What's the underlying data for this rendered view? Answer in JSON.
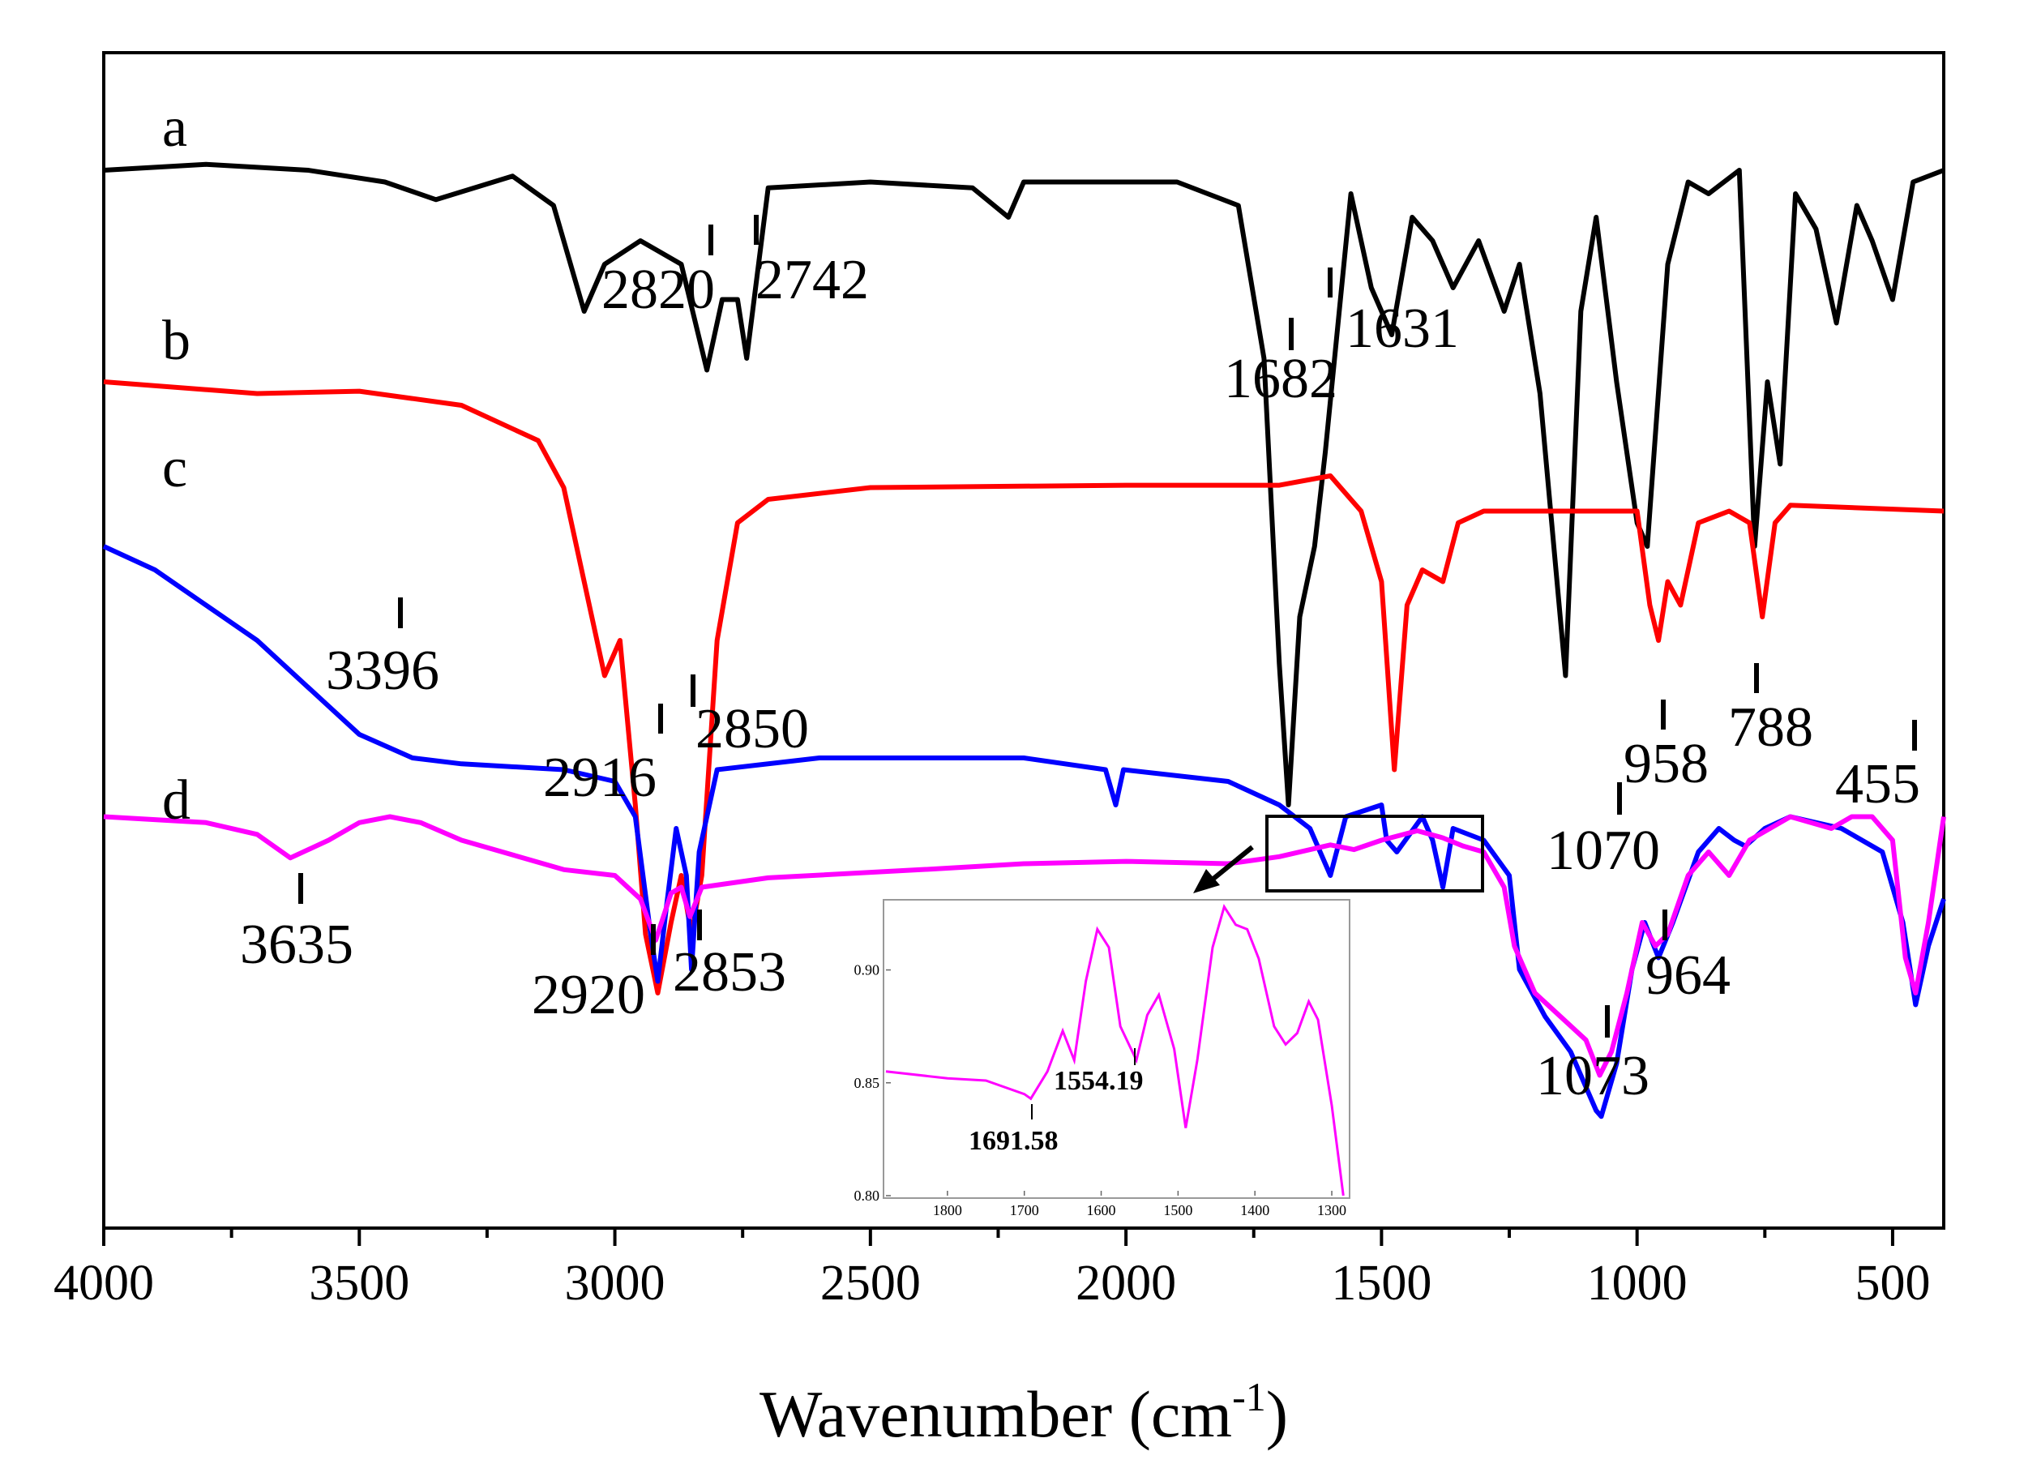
{
  "chart_data": {
    "type": "line",
    "title": "",
    "xlabel": "Wavenumber (cm",
    "xlabel_sup": "-1",
    "xlabel_close": ")",
    "ylabel": "",
    "xlim": [
      4000,
      400
    ],
    "x_reversed": true,
    "x_ticks": [
      4000,
      3500,
      3000,
      2500,
      2000,
      1500,
      1000,
      500
    ],
    "x_tick_labels": [
      "4000",
      "3500",
      "3000",
      "2500",
      "2000",
      "1500",
      "1000",
      "500"
    ],
    "y_ticks_shown": false,
    "series": [
      {
        "name": "a",
        "color": "#000000",
        "offset": 0.9,
        "points": [
          [
            4000,
            0.9
          ],
          [
            3800,
            0.905
          ],
          [
            3600,
            0.9
          ],
          [
            3450,
            0.89
          ],
          [
            3350,
            0.875
          ],
          [
            3200,
            0.895
          ],
          [
            3120,
            0.87
          ],
          [
            3060,
            0.78
          ],
          [
            3020,
            0.82
          ],
          [
            2950,
            0.84
          ],
          [
            2870,
            0.82
          ],
          [
            2820,
            0.73
          ],
          [
            2790,
            0.79
          ],
          [
            2760,
            0.79
          ],
          [
            2742,
            0.74
          ],
          [
            2700,
            0.885
          ],
          [
            2500,
            0.89
          ],
          [
            2300,
            0.885
          ],
          [
            2230,
            0.86
          ],
          [
            2200,
            0.89
          ],
          [
            1900,
            0.89
          ],
          [
            1780,
            0.87
          ],
          [
            1730,
            0.74
          ],
          [
            1700,
            0.48
          ],
          [
            1682,
            0.36
          ],
          [
            1660,
            0.52
          ],
          [
            1631,
            0.58
          ],
          [
            1610,
            0.66
          ],
          [
            1560,
            0.88
          ],
          [
            1520,
            0.8
          ],
          [
            1480,
            0.76
          ],
          [
            1440,
            0.86
          ],
          [
            1400,
            0.84
          ],
          [
            1360,
            0.8
          ],
          [
            1310,
            0.84
          ],
          [
            1260,
            0.78
          ],
          [
            1230,
            0.82
          ],
          [
            1190,
            0.71
          ],
          [
            1140,
            0.47
          ],
          [
            1110,
            0.78
          ],
          [
            1080,
            0.86
          ],
          [
            1040,
            0.72
          ],
          [
            1000,
            0.6
          ],
          [
            980,
            0.58
          ],
          [
            940,
            0.82
          ],
          [
            900,
            0.89
          ],
          [
            860,
            0.88
          ],
          [
            800,
            0.9
          ],
          [
            770,
            0.58
          ],
          [
            745,
            0.72
          ],
          [
            720,
            0.65
          ],
          [
            690,
            0.88
          ],
          [
            650,
            0.85
          ],
          [
            610,
            0.77
          ],
          [
            570,
            0.87
          ],
          [
            540,
            0.84
          ],
          [
            500,
            0.79
          ],
          [
            460,
            0.89
          ],
          [
            400,
            0.9
          ]
        ],
        "labels": [
          {
            "text": "2820",
            "x": 2820
          },
          {
            "text": "2742",
            "x": 2742
          },
          {
            "text": "1682",
            "x": 1682
          },
          {
            "text": "1631",
            "x": 1631
          }
        ]
      },
      {
        "name": "b",
        "color": "#ff0000",
        "offset": 0.72,
        "points": [
          [
            4000,
            0.72
          ],
          [
            3700,
            0.71
          ],
          [
            3500,
            0.712
          ],
          [
            3300,
            0.7
          ],
          [
            3150,
            0.67
          ],
          [
            3100,
            0.63
          ],
          [
            3060,
            0.55
          ],
          [
            3020,
            0.47
          ],
          [
            2990,
            0.5
          ],
          [
            2960,
            0.36
          ],
          [
            2940,
            0.25
          ],
          [
            2916,
            0.2
          ],
          [
            2890,
            0.26
          ],
          [
            2870,
            0.3
          ],
          [
            2850,
            0.25
          ],
          [
            2830,
            0.3
          ],
          [
            2800,
            0.5
          ],
          [
            2760,
            0.6
          ],
          [
            2700,
            0.62
          ],
          [
            2500,
            0.63
          ],
          [
            2000,
            0.632
          ],
          [
            1700,
            0.632
          ],
          [
            1600,
            0.64
          ],
          [
            1540,
            0.61
          ],
          [
            1500,
            0.55
          ],
          [
            1475,
            0.39
          ],
          [
            1450,
            0.53
          ],
          [
            1420,
            0.56
          ],
          [
            1380,
            0.55
          ],
          [
            1350,
            0.6
          ],
          [
            1300,
            0.61
          ],
          [
            1000,
            0.61
          ],
          [
            975,
            0.53
          ],
          [
            958,
            0.5
          ],
          [
            940,
            0.55
          ],
          [
            915,
            0.53
          ],
          [
            880,
            0.6
          ],
          [
            820,
            0.61
          ],
          [
            780,
            0.6
          ],
          [
            755,
            0.52
          ],
          [
            730,
            0.6
          ],
          [
            700,
            0.615
          ],
          [
            400,
            0.61
          ]
        ],
        "labels": []
      },
      {
        "name": "c",
        "color": "#0000ff",
        "offset": 0.56,
        "points": [
          [
            4000,
            0.58
          ],
          [
            3900,
            0.56
          ],
          [
            3800,
            0.53
          ],
          [
            3700,
            0.5
          ],
          [
            3600,
            0.46
          ],
          [
            3500,
            0.42
          ],
          [
            3396,
            0.4
          ],
          [
            3300,
            0.395
          ],
          [
            3100,
            0.39
          ],
          [
            3000,
            0.38
          ],
          [
            2960,
            0.35
          ],
          [
            2930,
            0.25
          ],
          [
            2916,
            0.21
          ],
          [
            2900,
            0.27
          ],
          [
            2880,
            0.34
          ],
          [
            2860,
            0.3
          ],
          [
            2850,
            0.22
          ],
          [
            2835,
            0.32
          ],
          [
            2800,
            0.39
          ],
          [
            2600,
            0.4
          ],
          [
            2200,
            0.4
          ],
          [
            2040,
            0.39
          ],
          [
            2020,
            0.36
          ],
          [
            2005,
            0.39
          ],
          [
            1800,
            0.38
          ],
          [
            1700,
            0.36
          ],
          [
            1640,
            0.34
          ],
          [
            1600,
            0.3
          ],
          [
            1570,
            0.35
          ],
          [
            1500,
            0.36
          ],
          [
            1490,
            0.33
          ],
          [
            1470,
            0.32
          ],
          [
            1420,
            0.35
          ],
          [
            1400,
            0.33
          ],
          [
            1380,
            0.29
          ],
          [
            1360,
            0.34
          ],
          [
            1300,
            0.33
          ],
          [
            1250,
            0.3
          ],
          [
            1230,
            0.22
          ],
          [
            1180,
            0.18
          ],
          [
            1130,
            0.15
          ],
          [
            1080,
            0.1
          ],
          [
            1070,
            0.095
          ],
          [
            1040,
            0.14
          ],
          [
            1010,
            0.22
          ],
          [
            985,
            0.26
          ],
          [
            958,
            0.23
          ],
          [
            930,
            0.26
          ],
          [
            880,
            0.32
          ],
          [
            840,
            0.34
          ],
          [
            810,
            0.33
          ],
          [
            788,
            0.325
          ],
          [
            750,
            0.34
          ],
          [
            700,
            0.35
          ],
          [
            600,
            0.34
          ],
          [
            520,
            0.32
          ],
          [
            480,
            0.26
          ],
          [
            455,
            0.19
          ],
          [
            430,
            0.24
          ],
          [
            400,
            0.28
          ]
        ],
        "labels": [
          {
            "text": "3396",
            "x": 3396
          },
          {
            "text": "2916",
            "x": 2916
          },
          {
            "text": "2850",
            "x": 2850
          },
          {
            "text": "1070",
            "x": 1070
          },
          {
            "text": "958",
            "x": 958
          },
          {
            "text": "788",
            "x": 788
          },
          {
            "text": "455",
            "x": 455
          }
        ]
      },
      {
        "name": "d",
        "color": "#ff00ff",
        "offset": 0.35,
        "points": [
          [
            4000,
            0.35
          ],
          [
            3800,
            0.345
          ],
          [
            3700,
            0.335
          ],
          [
            3635,
            0.315
          ],
          [
            3560,
            0.33
          ],
          [
            3500,
            0.345
          ],
          [
            3440,
            0.35
          ],
          [
            3380,
            0.345
          ],
          [
            3300,
            0.33
          ],
          [
            3100,
            0.305
          ],
          [
            3000,
            0.3
          ],
          [
            2950,
            0.28
          ],
          [
            2920,
            0.245
          ],
          [
            2890,
            0.285
          ],
          [
            2870,
            0.29
          ],
          [
            2853,
            0.265
          ],
          [
            2830,
            0.29
          ],
          [
            2700,
            0.298
          ],
          [
            2400,
            0.305
          ],
          [
            2200,
            0.31
          ],
          [
            2000,
            0.312
          ],
          [
            1800,
            0.31
          ],
          [
            1700,
            0.316
          ],
          [
            1600,
            0.326
          ],
          [
            1554,
            0.322
          ],
          [
            1500,
            0.33
          ],
          [
            1430,
            0.338
          ],
          [
            1380,
            0.332
          ],
          [
            1340,
            0.325
          ],
          [
            1300,
            0.32
          ],
          [
            1260,
            0.29
          ],
          [
            1240,
            0.24
          ],
          [
            1200,
            0.2
          ],
          [
            1150,
            0.18
          ],
          [
            1100,
            0.16
          ],
          [
            1073,
            0.13
          ],
          [
            1050,
            0.15
          ],
          [
            1020,
            0.2
          ],
          [
            990,
            0.26
          ],
          [
            964,
            0.24
          ],
          [
            940,
            0.25
          ],
          [
            900,
            0.3
          ],
          [
            860,
            0.32
          ],
          [
            820,
            0.3
          ],
          [
            780,
            0.33
          ],
          [
            700,
            0.35
          ],
          [
            620,
            0.34
          ],
          [
            580,
            0.35
          ],
          [
            540,
            0.35
          ],
          [
            500,
            0.33
          ],
          [
            475,
            0.23
          ],
          [
            455,
            0.2
          ],
          [
            430,
            0.26
          ],
          [
            400,
            0.35
          ]
        ],
        "labels": [
          {
            "text": "3635",
            "x": 3635
          },
          {
            "text": "2920",
            "x": 2920
          },
          {
            "text": "2853",
            "x": 2853
          },
          {
            "text": "1073",
            "x": 1073
          },
          {
            "text": "964",
            "x": 964
          }
        ]
      }
    ],
    "inset": {
      "type": "line",
      "series_name": "d (zoom)",
      "color": "#ff00ff",
      "xlim": [
        1880,
        1280
      ],
      "ylim": [
        0.8,
        0.93
      ],
      "x_ticks": [
        1800,
        1700,
        1600,
        1500,
        1400,
        1300
      ],
      "x_tick_labels": [
        "1800",
        "1700",
        "1600",
        "1500",
        "1400",
        "1300"
      ],
      "y_ticks": [
        0.8,
        0.85,
        0.9
      ],
      "y_tick_labels": [
        "0.80",
        "0.85",
        "0.90"
      ],
      "points": [
        [
          1880,
          0.855
        ],
        [
          1800,
          0.852
        ],
        [
          1750,
          0.851
        ],
        [
          1700,
          0.845
        ],
        [
          1691.58,
          0.843
        ],
        [
          1670,
          0.855
        ],
        [
          1650,
          0.873
        ],
        [
          1635,
          0.86
        ],
        [
          1620,
          0.895
        ],
        [
          1605,
          0.918
        ],
        [
          1590,
          0.91
        ],
        [
          1575,
          0.875
        ],
        [
          1554.19,
          0.86
        ],
        [
          1540,
          0.88
        ],
        [
          1525,
          0.889
        ],
        [
          1505,
          0.865
        ],
        [
          1490,
          0.83
        ],
        [
          1475,
          0.86
        ],
        [
          1455,
          0.91
        ],
        [
          1440,
          0.928
        ],
        [
          1425,
          0.92
        ],
        [
          1410,
          0.918
        ],
        [
          1395,
          0.905
        ],
        [
          1375,
          0.875
        ],
        [
          1360,
          0.867
        ],
        [
          1345,
          0.872
        ],
        [
          1330,
          0.886
        ],
        [
          1318,
          0.878
        ],
        [
          1300,
          0.84
        ],
        [
          1285,
          0.8
        ]
      ],
      "labels": [
        {
          "text": "1691.58",
          "x": 1691.58
        },
        {
          "text": "1554.19",
          "x": 1554.19
        }
      ]
    }
  }
}
